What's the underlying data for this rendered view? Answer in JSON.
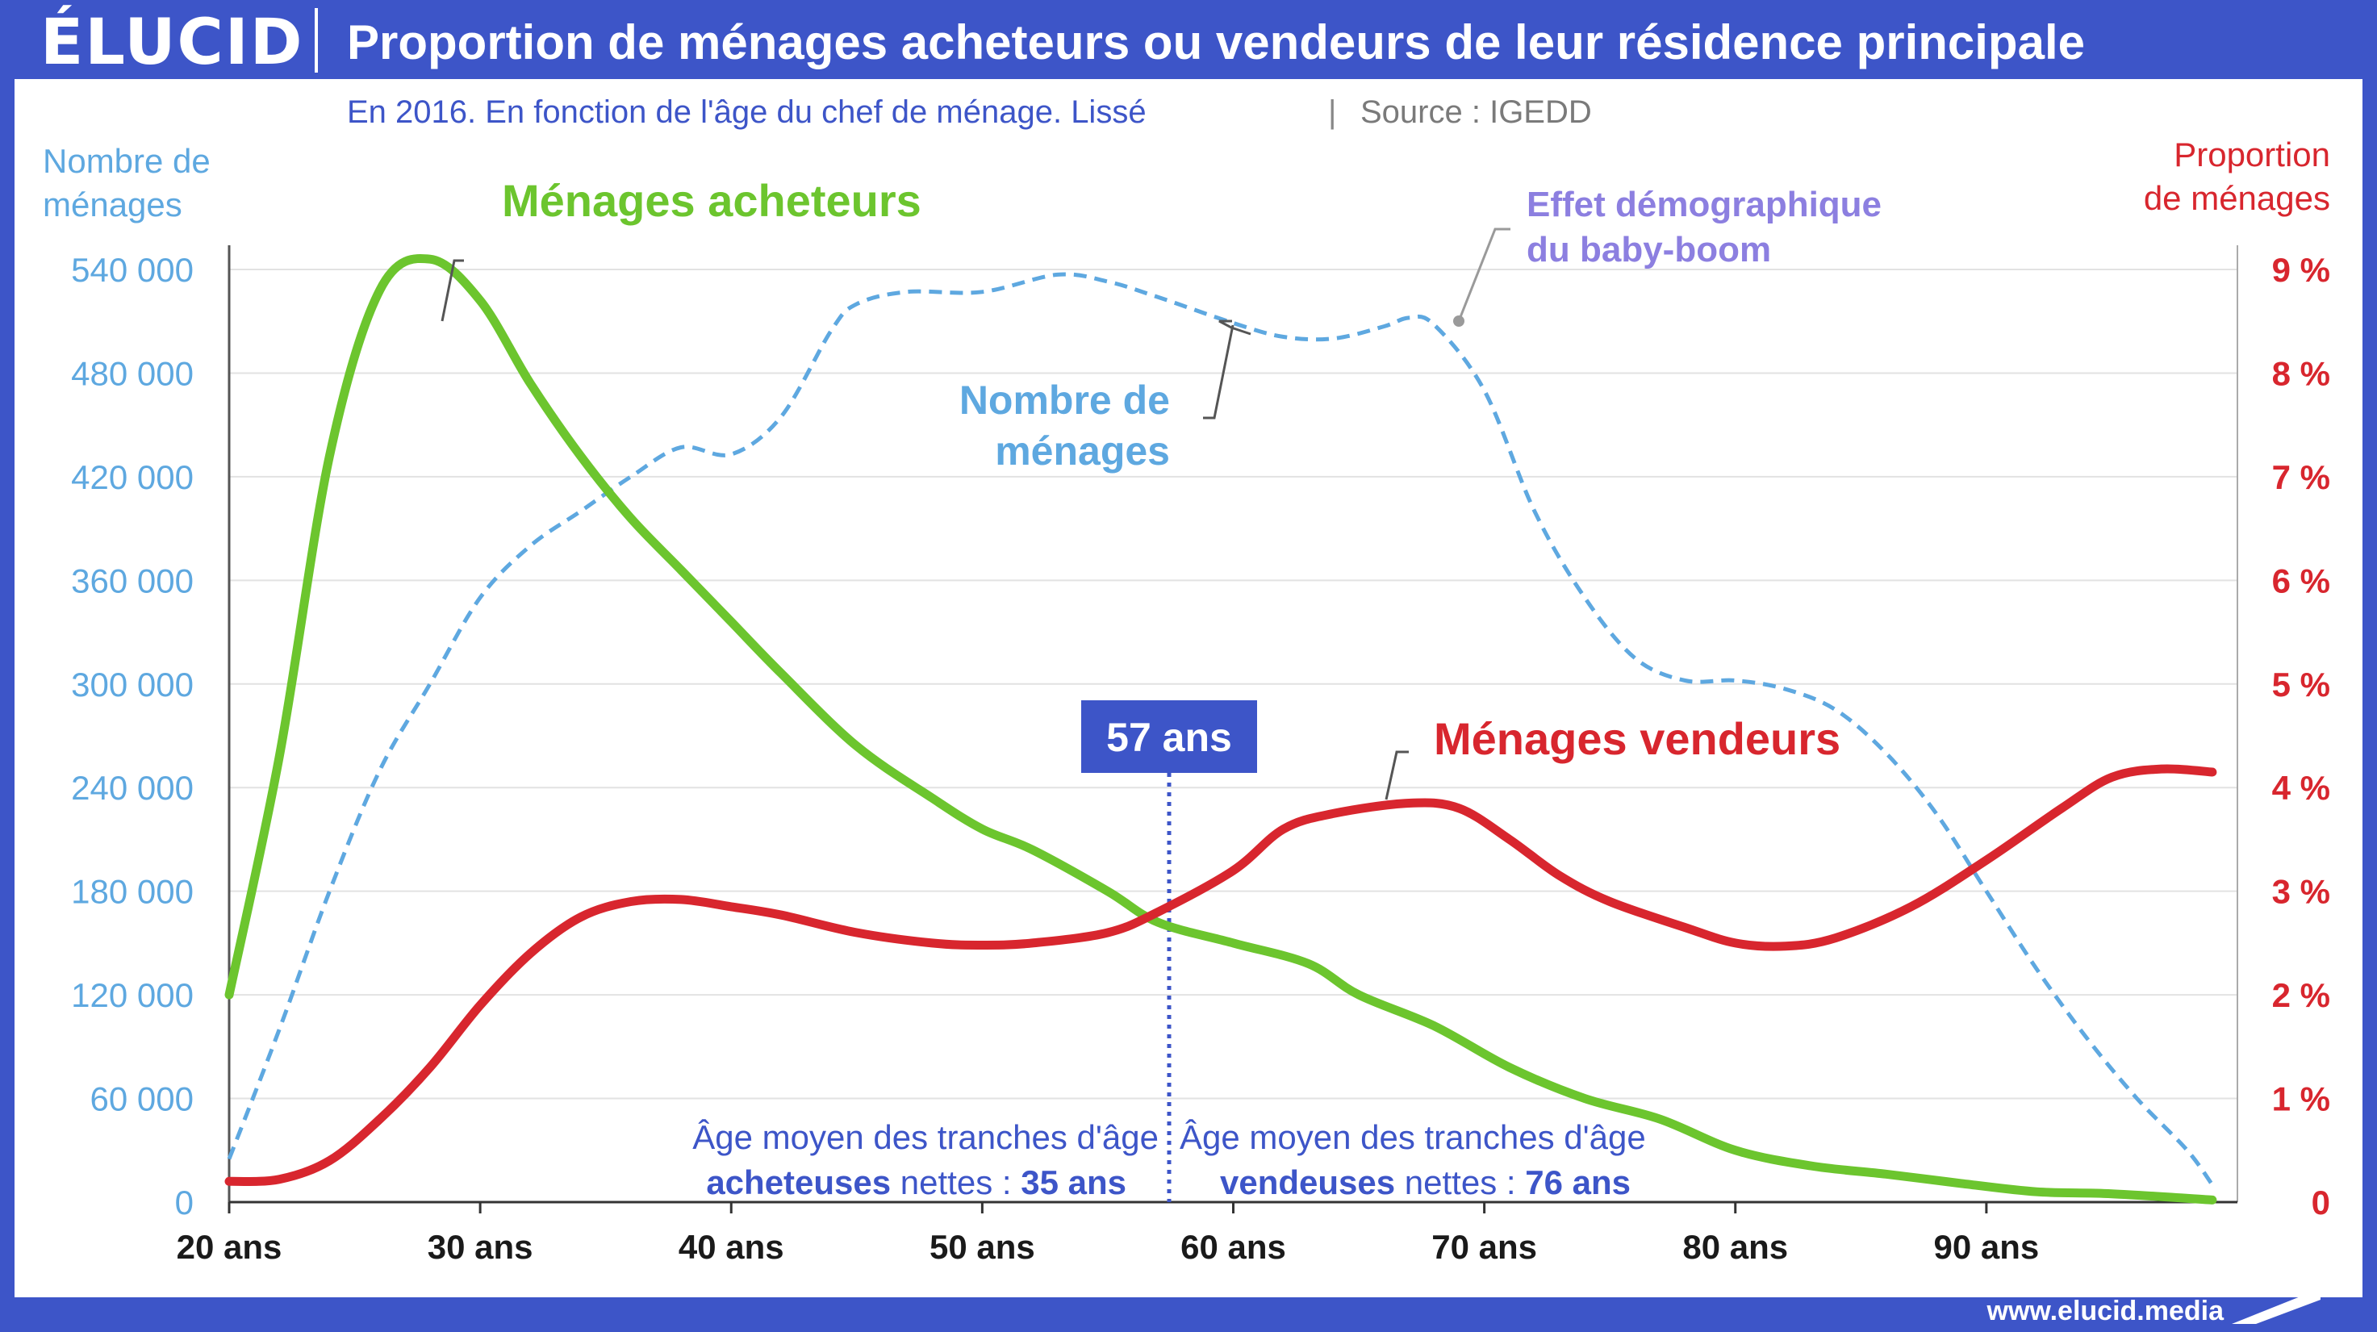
{
  "header": {
    "logo": "ÉLUCID",
    "title": "Proportion de ménages acheteurs ou vendeurs de leur résidence principale"
  },
  "subtitle": {
    "main": "En 2016. En fonction de l'âge du chef de ménage. Lissé",
    "separator": "|",
    "source": "Source : IGEDD"
  },
  "footer": {
    "url": "www.elucid.media"
  },
  "colors": {
    "brand": "#3d55c8",
    "buyers": "#6cc52e",
    "sellers": "#d8262e",
    "households": "#5ea8e0",
    "annotation_purple": "#8c7fe0",
    "grid": "#e2e2e2",
    "text_dark": "#1a1a1a"
  },
  "annotations": {
    "left_axis_title": [
      "Nombre de",
      "ménages"
    ],
    "right_axis_title": [
      "Proportion",
      "de ménages"
    ],
    "buyers_label": "Ménages acheteurs",
    "sellers_label": "Ménages vendeurs",
    "households_label": [
      "Nombre de",
      "ménages"
    ],
    "baby_boom": [
      "Effet démographique",
      "du baby-boom"
    ],
    "median_box": "57 ans",
    "buyers_avg": {
      "line1": "Âge moyen des tranches d'âge",
      "bold": "acheteuses",
      "mid": " nettes : ",
      "value": "35 ans"
    },
    "sellers_avg": {
      "line1": "Âge moyen des tranches d'âge",
      "bold": "vendeuses",
      "mid": " nettes : ",
      "value": "76 ans"
    }
  },
  "chart_data": {
    "type": "line",
    "x_range": [
      20,
      100
    ],
    "x_ticks": [
      20,
      30,
      40,
      50,
      60,
      70,
      80,
      90
    ],
    "x_tick_labels": [
      "20 ans",
      "30 ans",
      "40 ans",
      "50 ans",
      "60 ans",
      "70 ans",
      "80 ans",
      "90 ans"
    ],
    "y_left": {
      "range": [
        0,
        540000
      ],
      "ticks": [
        0,
        60000,
        120000,
        180000,
        240000,
        300000,
        360000,
        420000,
        480000,
        540000
      ],
      "tick_labels": [
        "0",
        "60 000",
        "120 000",
        "180 000",
        "240 000",
        "300 000",
        "360 000",
        "420 000",
        "480 000",
        "540 000"
      ]
    },
    "y_right": {
      "range": [
        0,
        9
      ],
      "ticks": [
        0,
        1,
        2,
        3,
        4,
        5,
        6,
        7,
        8,
        9
      ],
      "tick_labels": [
        "0",
        "1 %",
        "2 %",
        "3 %",
        "4 %",
        "5 %",
        "6 %",
        "7 %",
        "8 %",
        "9 %"
      ]
    },
    "grid": true,
    "marker_x": 57,
    "series": [
      {
        "name": "Ménages acheteurs",
        "axis": "right",
        "style": "solid",
        "x": [
          20,
          22,
          24,
          26,
          28,
          30,
          32,
          34,
          36,
          38,
          40,
          42,
          45,
          48,
          50,
          52,
          55,
          57,
          60,
          63,
          65,
          68,
          71,
          74,
          77,
          80,
          83,
          86,
          89,
          92,
          95,
          99
        ],
        "values": [
          2.0,
          4.3,
          7.2,
          8.8,
          9.1,
          8.7,
          7.9,
          7.2,
          6.6,
          6.1,
          5.6,
          5.1,
          4.4,
          3.9,
          3.6,
          3.4,
          3.0,
          2.7,
          2.5,
          2.3,
          2.0,
          1.7,
          1.3,
          1.0,
          0.8,
          0.5,
          0.35,
          0.27,
          0.18,
          0.1,
          0.08,
          0.02
        ]
      },
      {
        "name": "Ménages vendeurs",
        "axis": "right",
        "style": "solid",
        "x": [
          20,
          22,
          24,
          26,
          28,
          30,
          32,
          34,
          36,
          38,
          40,
          42,
          45,
          48,
          50,
          52,
          55,
          57,
          60,
          62,
          64,
          67,
          69,
          71,
          73,
          75,
          78,
          80,
          82,
          84,
          87,
          90,
          93,
          95,
          97,
          99
        ],
        "values": [
          0.2,
          0.22,
          0.4,
          0.8,
          1.3,
          1.9,
          2.4,
          2.75,
          2.9,
          2.92,
          2.85,
          2.77,
          2.6,
          2.5,
          2.48,
          2.5,
          2.6,
          2.8,
          3.2,
          3.6,
          3.75,
          3.85,
          3.8,
          3.5,
          3.15,
          2.9,
          2.65,
          2.5,
          2.47,
          2.55,
          2.85,
          3.3,
          3.8,
          4.1,
          4.18,
          4.15
        ]
      },
      {
        "name": "Nombre de ménages",
        "axis": "left",
        "style": "dashed",
        "x": [
          20,
          22,
          24,
          26,
          28,
          30,
          32,
          34,
          36,
          38,
          40,
          42,
          44,
          45,
          47,
          50,
          53,
          55,
          57,
          60,
          62,
          64,
          66,
          67,
          68,
          70,
          72,
          74,
          76,
          78,
          80,
          82,
          84,
          86,
          88,
          90,
          92,
          94,
          96,
          98,
          99
        ],
        "values": [
          25000,
          100000,
          180000,
          250000,
          300000,
          350000,
          380000,
          400000,
          420000,
          437000,
          433000,
          455000,
          505000,
          520000,
          527000,
          527000,
          537000,
          533000,
          524000,
          509000,
          501000,
          500000,
          507000,
          512000,
          508000,
          470000,
          400000,
          350000,
          315000,
          302000,
          302000,
          297000,
          285000,
          260000,
          225000,
          180000,
          135000,
          95000,
          60000,
          30000,
          10000
        ]
      }
    ]
  }
}
